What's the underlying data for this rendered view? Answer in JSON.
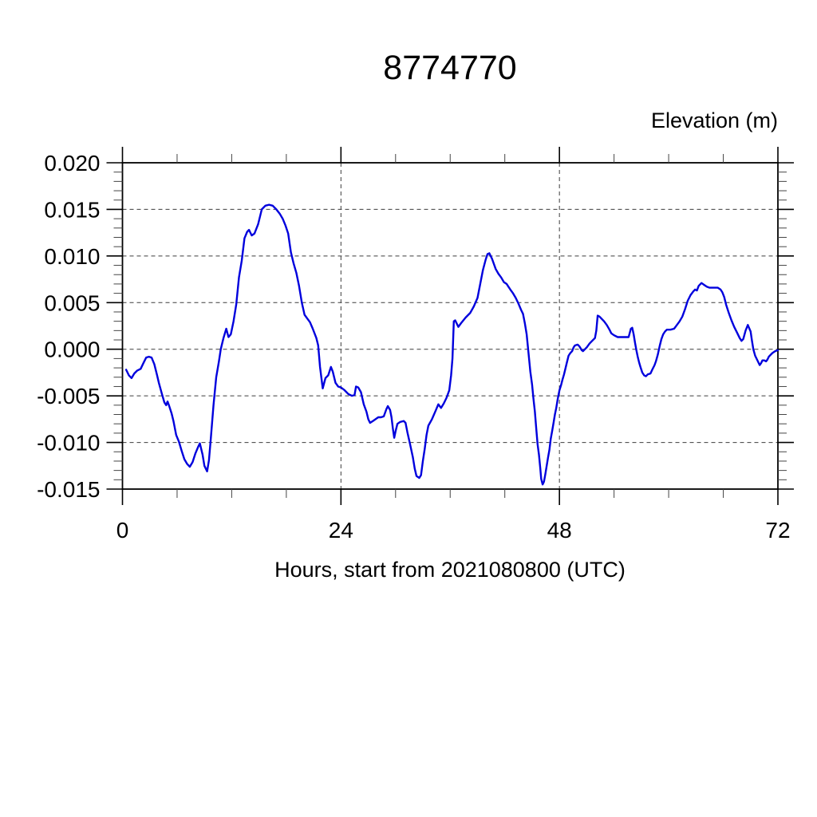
{
  "chart_data": {
    "type": "line",
    "title": "8774770",
    "xlabel": "Hours, start from 2021080800 (UTC)",
    "ylabel": "Elevation (m)",
    "xlim": [
      0,
      72
    ],
    "ylim": [
      -0.015,
      0.02
    ],
    "x_major_ticks": [
      0,
      24,
      48,
      72
    ],
    "x_tick_labels": [
      "0",
      "24",
      "48",
      "72"
    ],
    "x_minor_step": 6,
    "x_grid_hours": [
      24,
      48
    ],
    "y_major_ticks": [
      0.02,
      0.015,
      0.01,
      0.005,
      0.0,
      -0.005,
      -0.01,
      -0.015
    ],
    "y_tick_labels": [
      "0.020",
      "0.015",
      "0.010",
      "0.005",
      "0.000",
      "-0.005",
      "-0.010",
      "-0.015"
    ],
    "y_minor_step": 0.001,
    "grid": "dashed lines at major ticks, ticks outward on all four sides",
    "legend": "none",
    "line_color": "#0000dd",
    "axis_color": "#000000",
    "background_color": "#ffffff",
    "series": [
      {
        "name": "elevation",
        "points": [
          [
            0.4,
            -0.0022
          ],
          [
            0.7,
            -0.0028
          ],
          [
            1.0,
            -0.0031
          ],
          [
            1.3,
            -0.0026
          ],
          [
            1.6,
            -0.0023
          ],
          [
            2.0,
            -0.0021
          ],
          [
            2.3,
            -0.0015
          ],
          [
            2.6,
            -0.0009
          ],
          [
            2.9,
            -0.0008
          ],
          [
            3.2,
            -0.0009
          ],
          [
            3.5,
            -0.0016
          ],
          [
            3.8,
            -0.0028
          ],
          [
            4.0,
            -0.0036
          ],
          [
            4.3,
            -0.0047
          ],
          [
            4.6,
            -0.0057
          ],
          [
            4.8,
            -0.006
          ],
          [
            4.95,
            -0.0056
          ],
          [
            5.1,
            -0.006
          ],
          [
            5.4,
            -0.0069
          ],
          [
            5.6,
            -0.0077
          ],
          [
            5.9,
            -0.0092
          ],
          [
            6.2,
            -0.0099
          ],
          [
            6.5,
            -0.0109
          ],
          [
            6.8,
            -0.0118
          ],
          [
            7.1,
            -0.0123
          ],
          [
            7.4,
            -0.0126
          ],
          [
            7.7,
            -0.0121
          ],
          [
            8.0,
            -0.0112
          ],
          [
            8.3,
            -0.0105
          ],
          [
            8.5,
            -0.0101
          ],
          [
            8.8,
            -0.0113
          ],
          [
            9.0,
            -0.0125
          ],
          [
            9.3,
            -0.0131
          ],
          [
            9.5,
            -0.0119
          ],
          [
            9.7,
            -0.0096
          ],
          [
            10.0,
            -0.006
          ],
          [
            10.3,
            -0.003
          ],
          [
            10.6,
            -0.0013
          ],
          [
            10.8,
            0.0
          ],
          [
            11.1,
            0.0012
          ],
          [
            11.4,
            0.0022
          ],
          [
            11.65,
            0.0013
          ],
          [
            11.9,
            0.0016
          ],
          [
            12.2,
            0.003
          ],
          [
            12.5,
            0.0048
          ],
          [
            12.8,
            0.0077
          ],
          [
            13.1,
            0.0095
          ],
          [
            13.4,
            0.0119
          ],
          [
            13.7,
            0.0126
          ],
          [
            13.9,
            0.0128
          ],
          [
            14.2,
            0.0122
          ],
          [
            14.5,
            0.0124
          ],
          [
            14.9,
            0.0134
          ],
          [
            15.3,
            0.015
          ],
          [
            15.7,
            0.0154
          ],
          [
            16.1,
            0.0155
          ],
          [
            16.5,
            0.0154
          ],
          [
            16.9,
            0.015
          ],
          [
            17.3,
            0.0145
          ],
          [
            17.6,
            0.014
          ],
          [
            17.9,
            0.0133
          ],
          [
            18.2,
            0.0124
          ],
          [
            18.5,
            0.0104
          ],
          [
            18.8,
            0.0092
          ],
          [
            19.1,
            0.0082
          ],
          [
            19.4,
            0.0068
          ],
          [
            19.7,
            0.005
          ],
          [
            20.0,
            0.0037
          ],
          [
            20.3,
            0.0033
          ],
          [
            20.6,
            0.0029
          ],
          [
            20.9,
            0.0022
          ],
          [
            21.3,
            0.0012
          ],
          [
            21.5,
            0.0004
          ],
          [
            21.7,
            -0.0019
          ],
          [
            22.0,
            -0.0042
          ],
          [
            22.3,
            -0.0031
          ],
          [
            22.6,
            -0.0028
          ],
          [
            22.9,
            -0.0019
          ],
          [
            23.1,
            -0.0024
          ],
          [
            23.4,
            -0.0036
          ],
          [
            23.7,
            -0.004
          ],
          [
            24.0,
            -0.0041
          ],
          [
            24.4,
            -0.0044
          ],
          [
            24.8,
            -0.0048
          ],
          [
            25.2,
            -0.005
          ],
          [
            25.5,
            -0.0049
          ],
          [
            25.65,
            -0.004
          ],
          [
            25.9,
            -0.0041
          ],
          [
            26.2,
            -0.0046
          ],
          [
            26.5,
            -0.0059
          ],
          [
            26.8,
            -0.0067
          ],
          [
            27.0,
            -0.0075
          ],
          [
            27.2,
            -0.0079
          ],
          [
            27.5,
            -0.0077
          ],
          [
            27.8,
            -0.0075
          ],
          [
            28.1,
            -0.0073
          ],
          [
            28.4,
            -0.0073
          ],
          [
            28.7,
            -0.0072
          ],
          [
            29.0,
            -0.0064
          ],
          [
            29.15,
            -0.0061
          ],
          [
            29.4,
            -0.0065
          ],
          [
            29.55,
            -0.0073
          ],
          [
            29.7,
            -0.0085
          ],
          [
            29.85,
            -0.0095
          ],
          [
            30.0,
            -0.0088
          ],
          [
            30.2,
            -0.008
          ],
          [
            30.5,
            -0.0078
          ],
          [
            30.9,
            -0.0077
          ],
          [
            31.1,
            -0.0079
          ],
          [
            31.3,
            -0.0089
          ],
          [
            31.6,
            -0.0102
          ],
          [
            31.9,
            -0.0116
          ],
          [
            32.1,
            -0.0128
          ],
          [
            32.3,
            -0.0136
          ],
          [
            32.6,
            -0.0138
          ],
          [
            32.8,
            -0.0135
          ],
          [
            33.0,
            -0.012
          ],
          [
            33.2,
            -0.0107
          ],
          [
            33.4,
            -0.0092
          ],
          [
            33.6,
            -0.0082
          ],
          [
            34.0,
            -0.0075
          ],
          [
            34.4,
            -0.0066
          ],
          [
            34.7,
            -0.0059
          ],
          [
            35.0,
            -0.0063
          ],
          [
            35.3,
            -0.0058
          ],
          [
            35.6,
            -0.0052
          ],
          [
            35.9,
            -0.0044
          ],
          [
            36.1,
            -0.0028
          ],
          [
            36.25,
            -0.001
          ],
          [
            36.4,
            0.003
          ],
          [
            36.55,
            0.0031
          ],
          [
            36.9,
            0.0024
          ],
          [
            37.2,
            0.0028
          ],
          [
            37.7,
            0.0034
          ],
          [
            38.2,
            0.0039
          ],
          [
            38.6,
            0.0046
          ],
          [
            39.0,
            0.0055
          ],
          [
            39.3,
            0.007
          ],
          [
            39.6,
            0.0085
          ],
          [
            39.9,
            0.0096
          ],
          [
            40.1,
            0.0102
          ],
          [
            40.3,
            0.0103
          ],
          [
            40.6,
            0.0097
          ],
          [
            41.0,
            0.0086
          ],
          [
            41.3,
            0.0081
          ],
          [
            41.6,
            0.0077
          ],
          [
            41.9,
            0.0072
          ],
          [
            42.2,
            0.007
          ],
          [
            42.6,
            0.0064
          ],
          [
            42.9,
            0.006
          ],
          [
            43.2,
            0.0055
          ],
          [
            43.5,
            0.0049
          ],
          [
            43.8,
            0.0042
          ],
          [
            44.0,
            0.0038
          ],
          [
            44.2,
            0.0028
          ],
          [
            44.4,
            0.0016
          ],
          [
            44.6,
            -0.0004
          ],
          [
            44.8,
            -0.0024
          ],
          [
            45.0,
            -0.0038
          ],
          [
            45.15,
            -0.0053
          ],
          [
            45.3,
            -0.0067
          ],
          [
            45.45,
            -0.0085
          ],
          [
            45.6,
            -0.0102
          ],
          [
            45.75,
            -0.0113
          ],
          [
            45.9,
            -0.0128
          ],
          [
            46.0,
            -0.0139
          ],
          [
            46.15,
            -0.0145
          ],
          [
            46.3,
            -0.0142
          ],
          [
            46.45,
            -0.0134
          ],
          [
            46.6,
            -0.0125
          ],
          [
            46.75,
            -0.0116
          ],
          [
            46.9,
            -0.0108
          ],
          [
            47.05,
            -0.0096
          ],
          [
            47.2,
            -0.0088
          ],
          [
            47.35,
            -0.0079
          ],
          [
            47.5,
            -0.007
          ],
          [
            47.65,
            -0.0063
          ],
          [
            47.8,
            -0.0054
          ],
          [
            48.0,
            -0.0044
          ],
          [
            48.2,
            -0.0038
          ],
          [
            48.35,
            -0.0032
          ],
          [
            48.5,
            -0.0027
          ],
          [
            48.65,
            -0.0021
          ],
          [
            48.8,
            -0.0015
          ],
          [
            49.0,
            -0.0007
          ],
          [
            49.2,
            -0.0004
          ],
          [
            49.4,
            -0.0002
          ],
          [
            49.55,
            0.0002
          ],
          [
            49.7,
            0.0004
          ],
          [
            50.0,
            0.0005
          ],
          [
            50.2,
            0.0003
          ],
          [
            50.45,
            -0.0001
          ],
          [
            50.6,
            -0.0002
          ],
          [
            50.8,
            0.0
          ],
          [
            51.0,
            0.0002
          ],
          [
            51.3,
            0.0006
          ],
          [
            51.6,
            0.0009
          ],
          [
            51.9,
            0.0012
          ],
          [
            52.05,
            0.002
          ],
          [
            52.2,
            0.0036
          ],
          [
            52.4,
            0.0035
          ],
          [
            52.6,
            0.0033
          ],
          [
            52.9,
            0.003
          ],
          [
            53.2,
            0.0026
          ],
          [
            53.5,
            0.0021
          ],
          [
            53.7,
            0.0017
          ],
          [
            54.0,
            0.0015
          ],
          [
            54.4,
            0.0013
          ],
          [
            54.8,
            0.0013
          ],
          [
            55.2,
            0.0013
          ],
          [
            55.6,
            0.0013
          ],
          [
            55.85,
            0.0022
          ],
          [
            56.0,
            0.0023
          ],
          [
            56.15,
            0.0016
          ],
          [
            56.3,
            0.0007
          ],
          [
            56.45,
            -0.0001
          ],
          [
            56.6,
            -0.0008
          ],
          [
            56.75,
            -0.0014
          ],
          [
            56.9,
            -0.0019
          ],
          [
            57.1,
            -0.0025
          ],
          [
            57.3,
            -0.0028
          ],
          [
            57.5,
            -0.0029
          ],
          [
            57.7,
            -0.0027
          ],
          [
            58.0,
            -0.0026
          ],
          [
            58.2,
            -0.0022
          ],
          [
            58.45,
            -0.0017
          ],
          [
            58.6,
            -0.0013
          ],
          [
            58.8,
            -0.0006
          ],
          [
            59.0,
            0.0003
          ],
          [
            59.2,
            0.0011
          ],
          [
            59.4,
            0.0016
          ],
          [
            59.6,
            0.0019
          ],
          [
            59.8,
            0.0021
          ],
          [
            60.2,
            0.0021
          ],
          [
            60.6,
            0.0022
          ],
          [
            60.9,
            0.0026
          ],
          [
            61.2,
            0.003
          ],
          [
            61.5,
            0.0035
          ],
          [
            61.8,
            0.0043
          ],
          [
            62.1,
            0.0052
          ],
          [
            62.4,
            0.0058
          ],
          [
            62.7,
            0.0062
          ],
          [
            62.9,
            0.0064
          ],
          [
            63.1,
            0.0063
          ],
          [
            63.3,
            0.0068
          ],
          [
            63.6,
            0.0071
          ],
          [
            63.9,
            0.0069
          ],
          [
            64.2,
            0.0067
          ],
          [
            64.5,
            0.0066
          ],
          [
            64.8,
            0.0066
          ],
          [
            65.1,
            0.0066
          ],
          [
            65.4,
            0.0066
          ],
          [
            65.7,
            0.0064
          ],
          [
            65.9,
            0.0061
          ],
          [
            66.1,
            0.0056
          ],
          [
            66.3,
            0.0048
          ],
          [
            66.6,
            0.0039
          ],
          [
            66.9,
            0.0031
          ],
          [
            67.2,
            0.0024
          ],
          [
            67.5,
            0.0018
          ],
          [
            67.8,
            0.0012
          ],
          [
            68.0,
            0.0009
          ],
          [
            68.2,
            0.0011
          ],
          [
            68.45,
            0.002
          ],
          [
            68.7,
            0.0026
          ],
          [
            69.0,
            0.0019
          ],
          [
            69.15,
            0.0009
          ],
          [
            69.3,
            0.0
          ],
          [
            69.5,
            -0.0007
          ],
          [
            69.7,
            -0.0011
          ],
          [
            70.0,
            -0.0017
          ],
          [
            70.15,
            -0.0015
          ],
          [
            70.3,
            -0.0012
          ],
          [
            70.5,
            -0.0012
          ],
          [
            70.7,
            -0.0013
          ],
          [
            70.85,
            -0.0011
          ],
          [
            71.0,
            -0.0008
          ],
          [
            71.2,
            -0.0006
          ],
          [
            71.4,
            -0.0004
          ],
          [
            71.7,
            -0.0002
          ],
          [
            72.0,
            -0.0001
          ]
        ]
      }
    ]
  }
}
